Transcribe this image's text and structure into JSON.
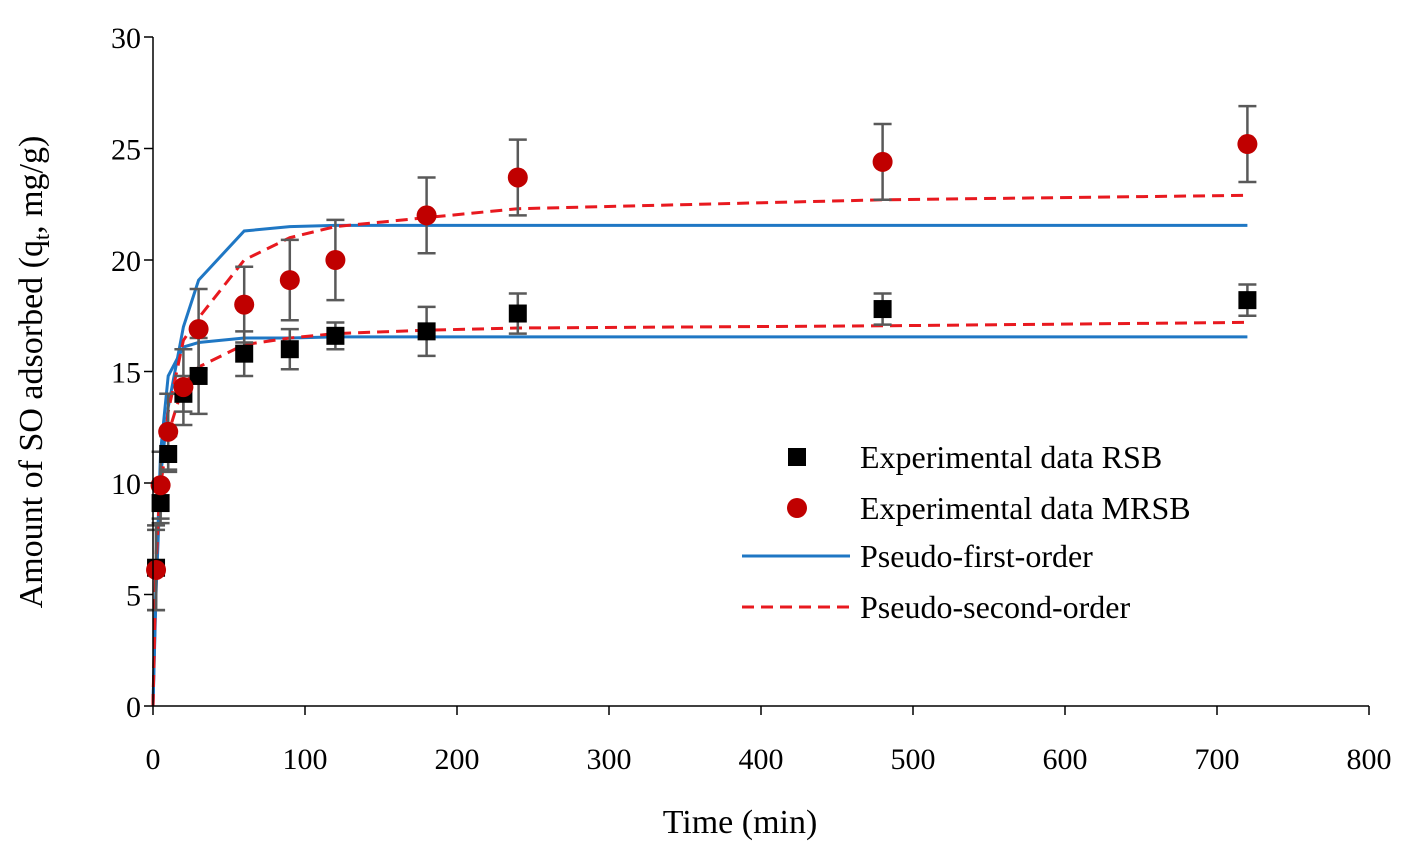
{
  "chart_data": {
    "type": "scatter",
    "title": "",
    "xlabel": "Time (min)",
    "ylabel": {
      "prefix": "Amount of SO adsorbed (q",
      "sub": "t",
      "suffix": ", mg/g)"
    },
    "xlim": [
      0,
      800
    ],
    "ylim": [
      0,
      30
    ],
    "xticks": [
      0,
      100,
      200,
      300,
      400,
      500,
      600,
      700,
      800
    ],
    "yticks": [
      0,
      5,
      10,
      15,
      20,
      25,
      30
    ],
    "grid": false,
    "legend_position": "center-right",
    "series": [
      {
        "name": "Experimental data RSB",
        "kind": "marker-square",
        "color": "#000000",
        "x": [
          2,
          5,
          10,
          20,
          30,
          60,
          90,
          120,
          180,
          240,
          480,
          720
        ],
        "y": [
          6.2,
          9.1,
          11.3,
          14.0,
          14.8,
          15.8,
          16.0,
          16.6,
          16.8,
          17.6,
          17.8,
          18.2
        ],
        "err": [
          1.9,
          0.9,
          0.8,
          0.8,
          1.7,
          1.0,
          0.9,
          0.6,
          1.1,
          0.9,
          0.7,
          0.7
        ]
      },
      {
        "name": "Experimental data MRSB",
        "kind": "marker-circle",
        "color": "#c00000",
        "x": [
          2,
          5,
          10,
          20,
          30,
          60,
          90,
          120,
          180,
          240,
          480,
          720
        ],
        "y": [
          6.1,
          9.9,
          12.3,
          14.3,
          16.9,
          18.0,
          19.1,
          20.0,
          22.0,
          23.7,
          24.4,
          25.2
        ],
        "err": [
          1.8,
          1.5,
          1.7,
          1.7,
          1.8,
          1.7,
          1.8,
          1.8,
          1.7,
          1.7,
          1.7,
          1.7
        ]
      },
      {
        "name": "Pseudo-first-order",
        "kind": "line-solid",
        "color": "#1f77c4",
        "curves": [
          {
            "x": [
              0,
              2,
              5,
              10,
              20,
              30,
              60,
              90,
              120,
              180,
              240,
              480,
              720
            ],
            "y": [
              0,
              5.5,
              11.4,
              14.8,
              16.1,
              16.3,
              16.5,
              16.5,
              16.55,
              16.55,
              16.55,
              16.55,
              16.55
            ]
          },
          {
            "x": [
              0,
              2,
              5,
              10,
              20,
              30,
              60,
              90,
              120,
              180,
              240,
              480,
              720
            ],
            "y": [
              0,
              5.0,
              10.3,
              13.4,
              17.0,
              19.1,
              21.3,
              21.5,
              21.55,
              21.55,
              21.55,
              21.55,
              21.55
            ]
          }
        ]
      },
      {
        "name": "Pseudo-second-order",
        "kind": "line-dashed",
        "color": "#e8191f",
        "curves": [
          {
            "x": [
              0,
              2,
              5,
              10,
              20,
              30,
              60,
              90,
              120,
              180,
              240,
              480,
              720
            ],
            "y": [
              0,
              6.8,
              9.9,
              12.2,
              14.4,
              15.2,
              16.2,
              16.5,
              16.7,
              16.85,
              16.95,
              17.05,
              17.2
            ]
          },
          {
            "x": [
              0,
              2,
              5,
              10,
              20,
              30,
              60,
              90,
              120,
              180,
              240,
              480,
              720
            ],
            "y": [
              0,
              6.3,
              10.2,
              13.2,
              16.4,
              17.4,
              20.0,
              21.0,
              21.5,
              21.9,
              22.3,
              22.7,
              22.9
            ]
          }
        ]
      }
    ]
  }
}
